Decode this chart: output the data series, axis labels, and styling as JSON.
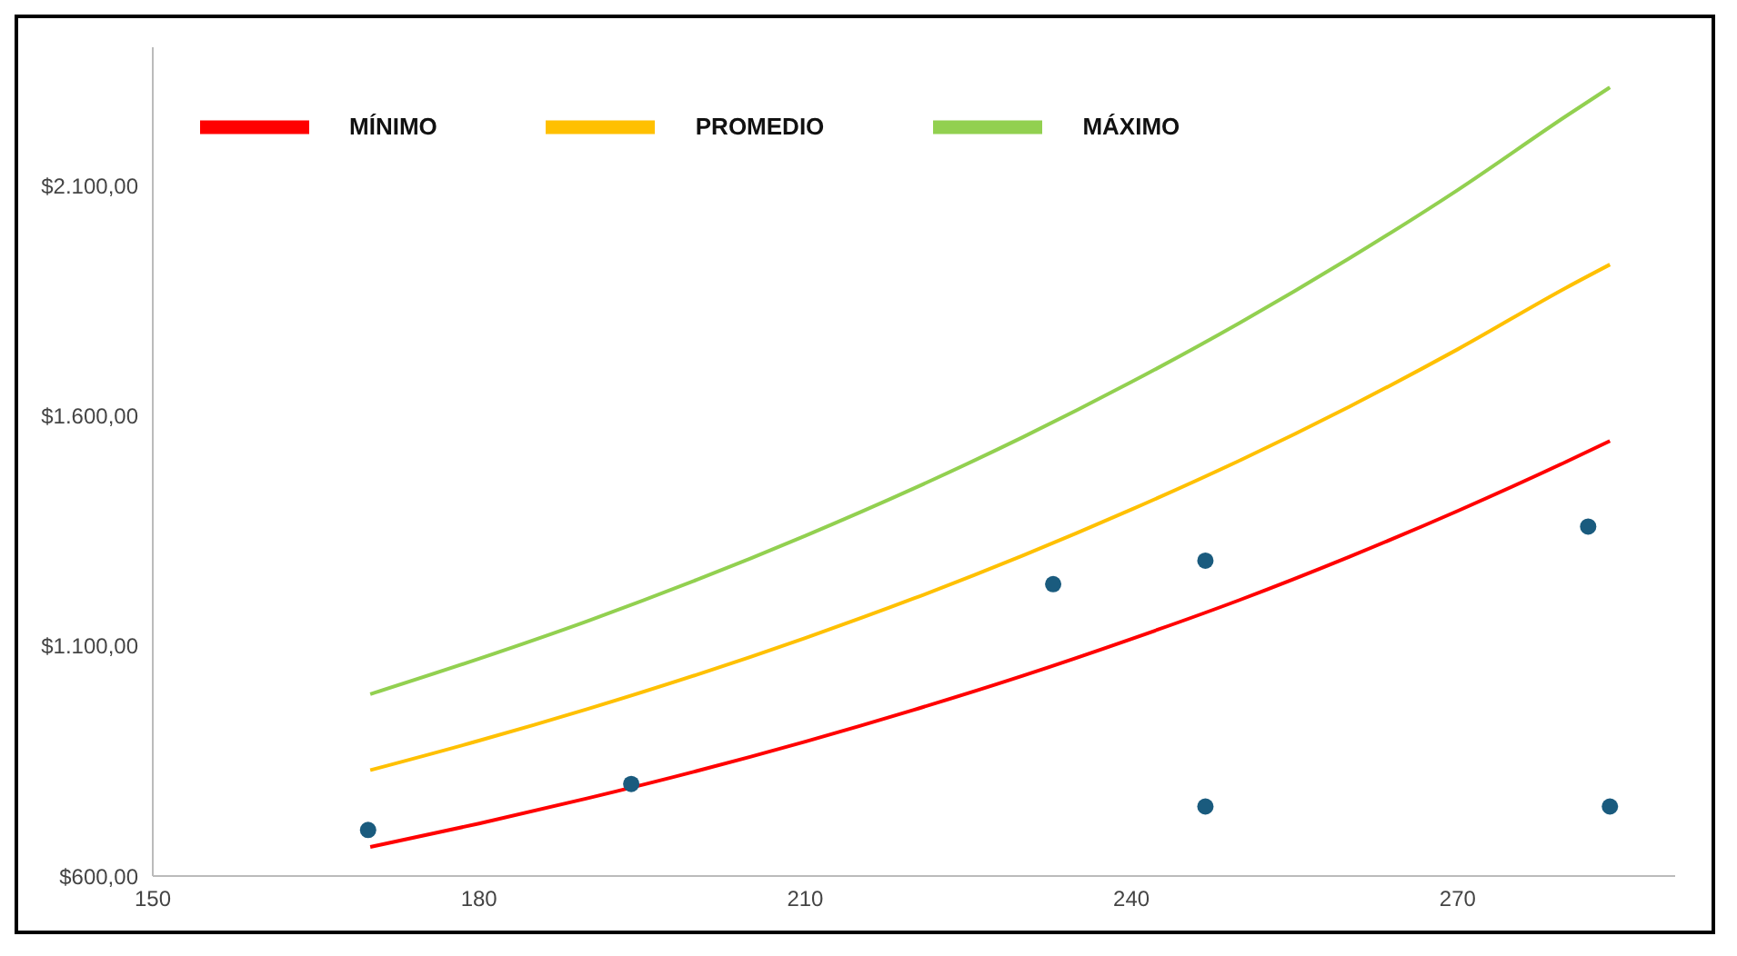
{
  "chart_data": {
    "type": "line",
    "xlim": [
      150,
      290
    ],
    "xticks": [
      150,
      180,
      210,
      240,
      270
    ],
    "ylim": [
      600,
      2400
    ],
    "yticks": [
      {
        "value": 600,
        "label": "$600,00"
      },
      {
        "value": 1100,
        "label": "$1.100,00"
      },
      {
        "value": 1600,
        "label": "$1.600,00"
      },
      {
        "value": 2100,
        "label": "$2.100,00"
      }
    ],
    "grid": false,
    "legend": "top left",
    "marker": "none",
    "series": [
      {
        "name": "MÍNIMO",
        "color": "#ff0000",
        "x": [
          170,
          180,
          190,
          200,
          210,
          220,
          230,
          240,
          250,
          260,
          270,
          280,
          284
        ],
        "values": [
          663,
          714,
          769,
          828,
          892,
          961,
          1035,
          1115,
          1200,
          1293,
          1393,
          1500,
          1545
        ]
      },
      {
        "name": "PROMEDIO",
        "color": "#ffc000",
        "x": [
          170,
          180,
          190,
          200,
          210,
          220,
          230,
          240,
          250,
          260,
          270,
          280,
          284
        ],
        "values": [
          830,
          894,
          963,
          1037,
          1117,
          1203,
          1296,
          1396,
          1503,
          1619,
          1744,
          1878,
          1928
        ]
      },
      {
        "name": "MÁXIMO",
        "color": "#92d050",
        "x": [
          170,
          180,
          190,
          200,
          210,
          220,
          230,
          240,
          250,
          260,
          270,
          280,
          284
        ],
        "values": [
          995,
          1072,
          1154,
          1243,
          1339,
          1442,
          1553,
          1673,
          1802,
          1941,
          2090,
          2251,
          2313
        ]
      },
      {
        "type": "scatter",
        "color": "#1a5b7e",
        "marker": "circle",
        "x": [
          169.8,
          194,
          232.8,
          246.8,
          246.8,
          282,
          284
        ],
        "values": [
          700,
          800,
          1234,
          1285,
          751,
          1359,
          751
        ]
      }
    ]
  }
}
